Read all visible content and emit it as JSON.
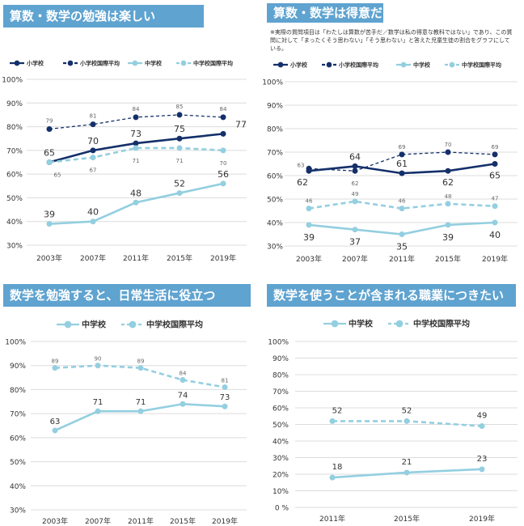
{
  "note": "※実際の質問項目は「わたしは算数が苦手だ／数学は私の得意な教科ではない」であり、この質問に対して「まったくそう思わない」「そう思わない」と答えた児童生徒の割合をグラフにしている。",
  "chart_data": [
    {
      "type": "line",
      "title": "算数・数学の勉強は楽しい",
      "categories": [
        "2003年",
        "2007年",
        "2011年",
        "2015年",
        "2019年"
      ],
      "ylim": [
        30,
        100
      ],
      "ytick_labels": [
        "30%",
        "40%",
        "50%",
        "60%",
        "70%",
        "80%",
        "90%",
        "100%"
      ],
      "grid": true,
      "legend": "top",
      "series": [
        {
          "name": "小学校",
          "values": [
            65,
            70,
            73,
            75,
            77
          ],
          "style": "solid",
          "color": "#14306a"
        },
        {
          "name": "小学校国際平均",
          "values": [
            79,
            81,
            84,
            85,
            84
          ],
          "style": "dashed",
          "color": "#14306a"
        },
        {
          "name": "中学校",
          "values": [
            39,
            40,
            48,
            52,
            56
          ],
          "style": "solid",
          "color": "#93cfe0"
        },
        {
          "name": "中学校国際平均",
          "values": [
            65,
            67,
            71,
            71,
            70
          ],
          "style": "dashed",
          "color": "#93cfe0"
        }
      ]
    },
    {
      "type": "line",
      "title": "算数・数学は得意だ",
      "categories": [
        "2003年",
        "2007年",
        "2011年",
        "2015年",
        "2019年"
      ],
      "ylim": [
        30,
        100
      ],
      "ytick_labels": [
        "30%",
        "40%",
        "50%",
        "60%",
        "70%",
        "80%",
        "90%",
        "100%"
      ],
      "grid": true,
      "legend": "top",
      "series": [
        {
          "name": "小学校",
          "values": [
            62,
            64,
            61,
            62,
            65
          ],
          "style": "solid",
          "color": "#14306a"
        },
        {
          "name": "小学校国際平均",
          "values": [
            63,
            62,
            69,
            70,
            69
          ],
          "style": "dashed",
          "color": "#14306a"
        },
        {
          "name": "中学校",
          "values": [
            39,
            37,
            35,
            39,
            40
          ],
          "style": "solid",
          "color": "#93cfe0"
        },
        {
          "name": "中学校国際平均",
          "values": [
            46,
            49,
            46,
            48,
            47
          ],
          "style": "dashed",
          "color": "#93cfe0"
        }
      ]
    },
    {
      "type": "line",
      "title": "数学を勉強すると、日常生活に役立つ",
      "categories": [
        "2003年",
        "2007年",
        "2011年",
        "2015年",
        "2019年"
      ],
      "ylim": [
        30,
        100
      ],
      "ytick_labels": [
        "30%",
        "40%",
        "50%",
        "60%",
        "70%",
        "80%",
        "90%",
        "100%"
      ],
      "grid": true,
      "legend": "top",
      "series": [
        {
          "name": "中学校",
          "values": [
            63,
            71,
            71,
            74,
            73
          ],
          "style": "solid",
          "color": "#93cfe0"
        },
        {
          "name": "中学校国際平均",
          "values": [
            89,
            90,
            89,
            84,
            81
          ],
          "style": "dashed",
          "color": "#93cfe0"
        }
      ]
    },
    {
      "type": "line",
      "title": "数学を使うことが含まれる職業につきたい",
      "categories": [
        "2011年",
        "2015年",
        "2019年"
      ],
      "ylim": [
        0,
        100
      ],
      "ytick_labels": [
        "0 %",
        "10%",
        "20%",
        "30%",
        "40%",
        "50%",
        "60%",
        "70%",
        "80%",
        "90%",
        "100%"
      ],
      "grid": true,
      "legend": "top",
      "series": [
        {
          "name": "中学校",
          "values": [
            18,
            21,
            23
          ],
          "style": "solid",
          "color": "#93cfe0"
        },
        {
          "name": "中学校国際平均",
          "values": [
            52,
            52,
            49
          ],
          "style": "dashed",
          "color": "#93cfe0"
        }
      ]
    }
  ]
}
